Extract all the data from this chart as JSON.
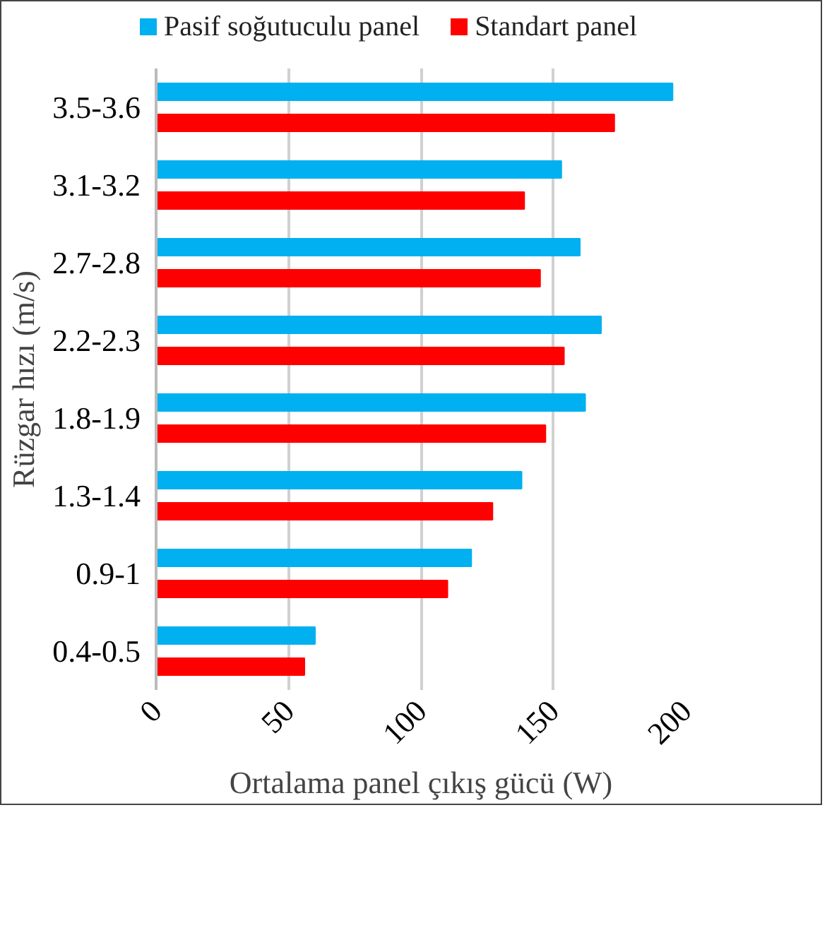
{
  "chart_data": {
    "type": "bar",
    "orientation": "horizontal",
    "xlabel": "Ortalama panel çıkış gücü (W)",
    "ylabel": "Rüzgar hızı (m/s)",
    "categories": [
      "3.5-3.6",
      "3.1-3.2",
      "2.7-2.8",
      "2.2-2.3",
      "1.8-1.9",
      "1.3-1.4",
      "0.9-1",
      "0.4-0.5"
    ],
    "series": [
      {
        "name": "Pasif soğutuculu panel",
        "color": "#00b0f0",
        "values": [
          195,
          153,
          160,
          168,
          162,
          138,
          119,
          60
        ]
      },
      {
        "name": "Standart panel",
        "color": "#ff0000",
        "values": [
          173,
          139,
          145,
          154,
          147,
          127,
          110,
          56
        ]
      }
    ],
    "xlim": [
      0,
      200
    ],
    "xticks": [
      0,
      50,
      100,
      150,
      200
    ],
    "grid": "x",
    "legend": "top"
  }
}
